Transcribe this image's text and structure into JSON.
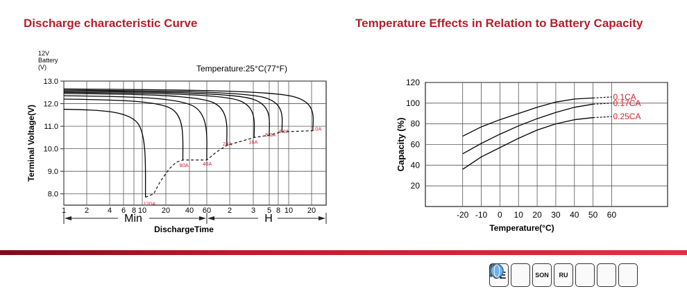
{
  "titles": {
    "left": "Discharge characteristic Curve",
    "right": "Temperature Effects in Relation to Battery Capacity"
  },
  "colors": {
    "title": "#b81c2c",
    "annotation": "#d42030",
    "curve": "#000000",
    "grid": "#444444"
  },
  "certifications": [
    {
      "name": "ce",
      "label": "CE"
    },
    {
      "name": "green-seal",
      "label": ""
    },
    {
      "name": "son",
      "label": "SON"
    },
    {
      "name": "ul",
      "label": "RU"
    },
    {
      "name": "checklist",
      "label": ""
    },
    {
      "name": "weee",
      "label": ""
    },
    {
      "name": "iso",
      "label": ""
    }
  ],
  "chart_data": [
    {
      "type": "line",
      "title": "Discharge characteristic Curve",
      "battery_label": [
        "12V",
        "Battery",
        "(V)"
      ],
      "temperature_note": "Temperature:25°C(77°F)",
      "ylabel": "Terminal Voltage(V)",
      "xlabel": "DischargeTime",
      "ylim": [
        7.5,
        13.0
      ],
      "yticks": [
        8.0,
        9.0,
        10.0,
        11.0,
        12.0,
        13.0
      ],
      "ytick_labels": [
        "8.0",
        "9.0",
        "10.0",
        "11.0",
        "12.0",
        "13.0"
      ],
      "xticks": [
        {
          "minutes": 1,
          "label": "1"
        },
        {
          "minutes": 2,
          "label": "2"
        },
        {
          "minutes": 4,
          "label": "4"
        },
        {
          "minutes": 6,
          "label": "6"
        },
        {
          "minutes": 8,
          "label": "8"
        },
        {
          "minutes": 10,
          "label": "10"
        },
        {
          "minutes": 20,
          "label": "20"
        },
        {
          "minutes": 40,
          "label": "40"
        },
        {
          "minutes": 60,
          "label": "60"
        },
        {
          "minutes": 120,
          "label": "2"
        },
        {
          "minutes": 180,
          "label": "3"
        },
        {
          "minutes": 300,
          "label": "5"
        },
        {
          "minutes": 480,
          "label": "8"
        },
        {
          "minutes": 600,
          "label": "10"
        },
        {
          "minutes": 1200,
          "label": "20"
        }
      ],
      "unit_labels": {
        "min": "Min",
        "hour": "H"
      },
      "series": [
        {
          "name": "120A",
          "end_minutes": 11,
          "start_v": 11.75,
          "end_v": 7.85
        },
        {
          "name": "80A",
          "end_minutes": 33,
          "start_v": 12.2,
          "end_v": 9.5
        },
        {
          "name": "40A",
          "end_minutes": 60,
          "start_v": 12.35,
          "end_v": 9.5
        },
        {
          "name": "24A",
          "end_minutes": 110,
          "start_v": 12.45,
          "end_v": 10.15
        },
        {
          "name": "16A",
          "end_minutes": 185,
          "start_v": 12.5,
          "end_v": 10.5
        },
        {
          "name": "8.0A",
          "end_minutes": 300,
          "start_v": 12.55,
          "end_v": 10.6
        },
        {
          "name": "4.0A",
          "end_minutes": 520,
          "start_v": 12.6,
          "end_v": 10.75
        },
        {
          "name": "2.0A",
          "end_minutes": 1250,
          "start_v": 12.65,
          "end_v": 10.8
        }
      ],
      "cutoff_curve": [
        {
          "minutes": 11,
          "v": 7.85
        },
        {
          "minutes": 14,
          "v": 8.0
        },
        {
          "minutes": 17,
          "v": 8.55
        },
        {
          "minutes": 22,
          "v": 9.1
        },
        {
          "minutes": 27,
          "v": 9.4
        },
        {
          "minutes": 33,
          "v": 9.5
        },
        {
          "minutes": 45,
          "v": 9.5
        },
        {
          "minutes": 60,
          "v": 9.5
        },
        {
          "minutes": 80,
          "v": 9.85
        },
        {
          "minutes": 110,
          "v": 10.15
        },
        {
          "minutes": 185,
          "v": 10.5
        },
        {
          "minutes": 300,
          "v": 10.6
        },
        {
          "minutes": 520,
          "v": 10.75
        },
        {
          "minutes": 1250,
          "v": 10.8
        }
      ]
    },
    {
      "type": "line",
      "title": "Temperature Effects in Relation to Battery Capacity",
      "ylabel": "Capacity (%)",
      "xlabel": "Temperature(°C)",
      "ylim": [
        0,
        120
      ],
      "xlim": [
        -40,
        90
      ],
      "yticks": [
        20,
        40,
        60,
        80,
        100,
        120
      ],
      "xticks": [
        -20,
        -10,
        0,
        10,
        20,
        30,
        40,
        50,
        60
      ],
      "series": [
        {
          "name": "0.1CA",
          "x": [
            -20,
            -10,
            0,
            10,
            20,
            30,
            40,
            50
          ],
          "y": [
            68,
            77,
            84,
            90,
            96,
            101,
            104,
            105
          ],
          "dashed_to": [
            60,
            106
          ]
        },
        {
          "name": "0.17CA",
          "x": [
            -20,
            -10,
            0,
            10,
            20,
            30,
            40,
            50
          ],
          "y": [
            51,
            61,
            70,
            78,
            85,
            91,
            96,
            99
          ],
          "dashed_to": [
            60,
            100
          ]
        },
        {
          "name": "0.25CA",
          "x": [
            -20,
            -10,
            0,
            10,
            20,
            30,
            40,
            50
          ],
          "y": [
            36,
            48,
            57,
            66,
            74,
            80,
            84,
            86
          ],
          "dashed_to": [
            60,
            87
          ]
        }
      ]
    }
  ]
}
